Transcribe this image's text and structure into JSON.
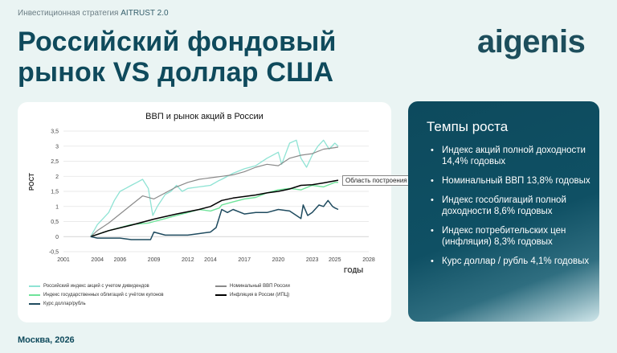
{
  "header": {
    "subtitle_prefix": "Инвестиционная стратегия",
    "subtitle_brand": "AITRUST 2.0",
    "title_line1": "Российский фондовый",
    "title_line2": "рынок VS доллар США",
    "logo": "aigenis"
  },
  "growth": {
    "title": "Темпы роста",
    "items": [
      "Индекс акций полной доходности 14,4% годовых",
      "Номинальный ВВП 13,8% годовых",
      "Индекс гособлигаций полной доходности 8,6% годовых",
      "Индекс потребительских цен (инфляция) 8,3% годовых",
      "Курс доллар / рубль 4,1% годовых"
    ]
  },
  "footer": {
    "text": "Москва, 2026"
  },
  "tooltip": {
    "text": "Область построения"
  },
  "colors": {
    "stocks": "#8fe3d4",
    "gdp": "#8a8a8a",
    "bonds": "#6fe39a",
    "cpi": "#000000",
    "usd": "#1f4b5f"
  },
  "chart_data": {
    "type": "line",
    "title": "ВВП и рынок акций в России",
    "ylabel": "РОСТ",
    "xlabel": "ГОДЫ",
    "xlim": [
      2001,
      2028
    ],
    "ylim": [
      -0.5,
      3.5
    ],
    "x_ticks": [
      "2001",
      "2004",
      "2006",
      "2009",
      "2012",
      "2014",
      "2017",
      "2020",
      "2023",
      "2025",
      "2028"
    ],
    "y_ticks": [
      "-0,5",
      "0",
      "0,5",
      "1",
      "1,5",
      "2",
      "2,5",
      "3",
      "3,5"
    ],
    "grid": true,
    "legend": "bottom",
    "series": [
      {
        "name": "Российский индекс акций с учетом дивидендов",
        "color": "#8fe3d4",
        "points": [
          [
            2003.4,
            0
          ],
          [
            2004,
            0.4
          ],
          [
            2004.5,
            0.6
          ],
          [
            2005,
            0.8
          ],
          [
            2005.5,
            1.2
          ],
          [
            2006,
            1.5
          ],
          [
            2006.5,
            1.6
          ],
          [
            2007,
            1.7
          ],
          [
            2007.5,
            1.8
          ],
          [
            2008,
            1.9
          ],
          [
            2008.5,
            1.6
          ],
          [
            2008.9,
            0.7
          ],
          [
            2009.3,
            1.0
          ],
          [
            2010,
            1.4
          ],
          [
            2010.5,
            1.5
          ],
          [
            2011,
            1.7
          ],
          [
            2011.5,
            1.5
          ],
          [
            2012,
            1.6
          ],
          [
            2013,
            1.65
          ],
          [
            2014,
            1.7
          ],
          [
            2014.7,
            1.85
          ],
          [
            2015,
            1.9
          ],
          [
            2016,
            2.1
          ],
          [
            2017,
            2.25
          ],
          [
            2018,
            2.35
          ],
          [
            2019,
            2.6
          ],
          [
            2020,
            2.8
          ],
          [
            2020.3,
            2.4
          ],
          [
            2021,
            3.1
          ],
          [
            2021.6,
            3.2
          ],
          [
            2022,
            2.6
          ],
          [
            2022.5,
            2.3
          ],
          [
            2023,
            2.7
          ],
          [
            2023.5,
            3.0
          ],
          [
            2024,
            3.2
          ],
          [
            2024.5,
            2.9
          ],
          [
            2025,
            3.1
          ],
          [
            2025.3,
            3.0
          ]
        ]
      },
      {
        "name": "Номинальный ВВП России",
        "color": "#8a8a8a",
        "points": [
          [
            2003.4,
            0
          ],
          [
            2004,
            0.2
          ],
          [
            2005,
            0.45
          ],
          [
            2006,
            0.75
          ],
          [
            2007,
            1.05
          ],
          [
            2008,
            1.35
          ],
          [
            2009,
            1.25
          ],
          [
            2010,
            1.45
          ],
          [
            2011,
            1.65
          ],
          [
            2012,
            1.8
          ],
          [
            2013,
            1.9
          ],
          [
            2014,
            1.95
          ],
          [
            2015,
            2.0
          ],
          [
            2016,
            2.05
          ],
          [
            2017,
            2.15
          ],
          [
            2018,
            2.3
          ],
          [
            2019,
            2.4
          ],
          [
            2020,
            2.35
          ],
          [
            2021,
            2.6
          ],
          [
            2022,
            2.7
          ],
          [
            2023,
            2.75
          ],
          [
            2024,
            2.9
          ],
          [
            2025,
            2.95
          ],
          [
            2025.3,
            2.97
          ]
        ]
      },
      {
        "name": "Индекс государственных облигаций с учётом купонов",
        "color": "#6fe39a",
        "points": [
          [
            2003.4,
            0
          ],
          [
            2005,
            0.2
          ],
          [
            2007,
            0.4
          ],
          [
            2008.5,
            0.45
          ],
          [
            2009,
            0.5
          ],
          [
            2010,
            0.6
          ],
          [
            2011,
            0.7
          ],
          [
            2012,
            0.8
          ],
          [
            2013,
            0.9
          ],
          [
            2014,
            0.85
          ],
          [
            2014.8,
            0.95
          ],
          [
            2015,
            1.05
          ],
          [
            2016,
            1.15
          ],
          [
            2017,
            1.25
          ],
          [
            2018,
            1.3
          ],
          [
            2019,
            1.45
          ],
          [
            2020,
            1.55
          ],
          [
            2021,
            1.6
          ],
          [
            2022,
            1.55
          ],
          [
            2023,
            1.7
          ],
          [
            2024,
            1.65
          ],
          [
            2025,
            1.8
          ],
          [
            2025.3,
            1.8
          ]
        ]
      },
      {
        "name": "Инфляция в России (ИПЦ)",
        "color": "#000000",
        "points": [
          [
            2003.4,
            0
          ],
          [
            2005,
            0.2
          ],
          [
            2007,
            0.38
          ],
          [
            2009,
            0.58
          ],
          [
            2011,
            0.75
          ],
          [
            2013,
            0.9
          ],
          [
            2014,
            1.0
          ],
          [
            2015,
            1.2
          ],
          [
            2016,
            1.28
          ],
          [
            2017,
            1.33
          ],
          [
            2018,
            1.38
          ],
          [
            2019,
            1.45
          ],
          [
            2020,
            1.5
          ],
          [
            2021,
            1.58
          ],
          [
            2022,
            1.7
          ],
          [
            2023,
            1.72
          ],
          [
            2024,
            1.78
          ],
          [
            2025,
            1.85
          ],
          [
            2025.3,
            1.87
          ]
        ]
      },
      {
        "name": "Курс доллар/рубль",
        "color": "#1f4b5f",
        "points": [
          [
            2003.4,
            0
          ],
          [
            2004,
            -0.05
          ],
          [
            2005,
            -0.05
          ],
          [
            2006,
            -0.05
          ],
          [
            2007,
            -0.1
          ],
          [
            2008,
            -0.1
          ],
          [
            2008.7,
            -0.1
          ],
          [
            2009,
            0.15
          ],
          [
            2009.5,
            0.1
          ],
          [
            2010,
            0.05
          ],
          [
            2011,
            0.05
          ],
          [
            2012,
            0.05
          ],
          [
            2013,
            0.1
          ],
          [
            2014,
            0.15
          ],
          [
            2014.5,
            0.3
          ],
          [
            2015,
            0.9
          ],
          [
            2015.5,
            0.8
          ],
          [
            2016,
            0.9
          ],
          [
            2017,
            0.75
          ],
          [
            2018,
            0.8
          ],
          [
            2019,
            0.8
          ],
          [
            2020,
            0.9
          ],
          [
            2021,
            0.85
          ],
          [
            2022,
            0.6
          ],
          [
            2022.2,
            1.05
          ],
          [
            2022.6,
            0.7
          ],
          [
            2023,
            0.8
          ],
          [
            2023.6,
            1.05
          ],
          [
            2024,
            1.0
          ],
          [
            2024.4,
            1.2
          ],
          [
            2024.8,
            1.0
          ],
          [
            2025,
            0.95
          ],
          [
            2025.3,
            0.9
          ]
        ]
      }
    ]
  }
}
